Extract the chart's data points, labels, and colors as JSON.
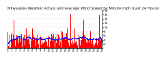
{
  "title": "Milwaukee Weather Actual and Average Wind Speed by Minute mph (Last 24 Hours)",
  "title_fontsize": 3.8,
  "background_color": "#ffffff",
  "bar_color": "#ff0000",
  "line_color": "#0000ff",
  "ylim": [
    0,
    18
  ],
  "yticks": [
    2,
    4,
    6,
    8,
    10,
    12,
    14,
    16,
    18
  ],
  "ylabel_fontsize": 3.2,
  "xlabel_fontsize": 2.8,
  "n_bars": 1440,
  "seed": 42
}
